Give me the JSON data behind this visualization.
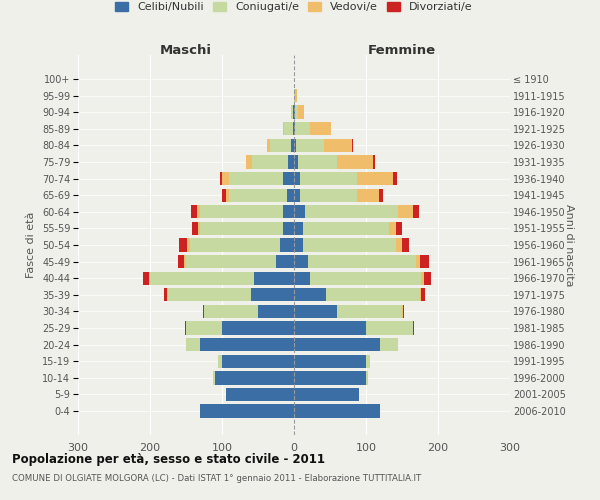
{
  "age_groups": [
    "0-4",
    "5-9",
    "10-14",
    "15-19",
    "20-24",
    "25-29",
    "30-34",
    "35-39",
    "40-44",
    "45-49",
    "50-54",
    "55-59",
    "60-64",
    "65-69",
    "70-74",
    "75-79",
    "80-84",
    "85-89",
    "90-94",
    "95-99",
    "100+"
  ],
  "birth_years": [
    "2006-2010",
    "2001-2005",
    "1996-2000",
    "1991-1995",
    "1986-1990",
    "1981-1985",
    "1976-1980",
    "1971-1975",
    "1966-1970",
    "1961-1965",
    "1956-1960",
    "1951-1955",
    "1946-1950",
    "1941-1945",
    "1936-1940",
    "1931-1935",
    "1926-1930",
    "1921-1925",
    "1916-1920",
    "1911-1915",
    "≤ 1910"
  ],
  "male": {
    "celibi": [
      130,
      95,
      110,
      100,
      130,
      100,
      50,
      60,
      55,
      25,
      20,
      15,
      15,
      10,
      15,
      8,
      4,
      2,
      1,
      0,
      0
    ],
    "coniugati": [
      0,
      0,
      3,
      5,
      20,
      50,
      75,
      115,
      145,
      125,
      125,
      115,
      115,
      80,
      75,
      50,
      30,
      12,
      3,
      0,
      0
    ],
    "vedovi": [
      0,
      0,
      0,
      0,
      0,
      0,
      0,
      1,
      2,
      3,
      3,
      3,
      5,
      5,
      10,
      8,
      3,
      1,
      0,
      0,
      0
    ],
    "divorziati": [
      0,
      0,
      0,
      0,
      0,
      2,
      2,
      5,
      8,
      8,
      12,
      8,
      8,
      5,
      3,
      0,
      0,
      0,
      0,
      0,
      0
    ]
  },
  "female": {
    "nubili": [
      120,
      90,
      100,
      100,
      120,
      100,
      60,
      45,
      22,
      20,
      12,
      12,
      15,
      8,
      8,
      5,
      3,
      2,
      1,
      0,
      0
    ],
    "coniugate": [
      0,
      0,
      3,
      5,
      25,
      65,
      90,
      130,
      155,
      150,
      130,
      120,
      130,
      80,
      80,
      55,
      38,
      20,
      5,
      2,
      0
    ],
    "vedove": [
      0,
      0,
      0,
      0,
      0,
      0,
      1,
      2,
      3,
      5,
      8,
      10,
      20,
      30,
      50,
      50,
      40,
      30,
      8,
      2,
      0
    ],
    "divorziate": [
      0,
      0,
      0,
      0,
      0,
      1,
      2,
      5,
      10,
      12,
      10,
      8,
      8,
      5,
      5,
      2,
      1,
      0,
      0,
      0,
      0
    ]
  },
  "colors": {
    "celibi": "#3B6EA5",
    "coniugati": "#C5D9A0",
    "vedovi": "#F0BE6A",
    "divorziati": "#CC2222"
  },
  "title": "Popolazione per età, sesso e stato civile - 2011",
  "subtitle": "COMUNE DI OLGIATE MOLGORA (LC) - Dati ISTAT 1° gennaio 2011 - Elaborazione TUTTITALIA.IT",
  "xlabel_left": "Maschi",
  "xlabel_right": "Femmine",
  "ylabel_left": "Fasce di età",
  "ylabel_right": "Anni di nascita",
  "xlim": 300,
  "background_color": "#f0f0eb",
  "legend_labels": [
    "Celibi/Nubili",
    "Coniugati/e",
    "Vedovi/e",
    "Divorziati/e"
  ]
}
